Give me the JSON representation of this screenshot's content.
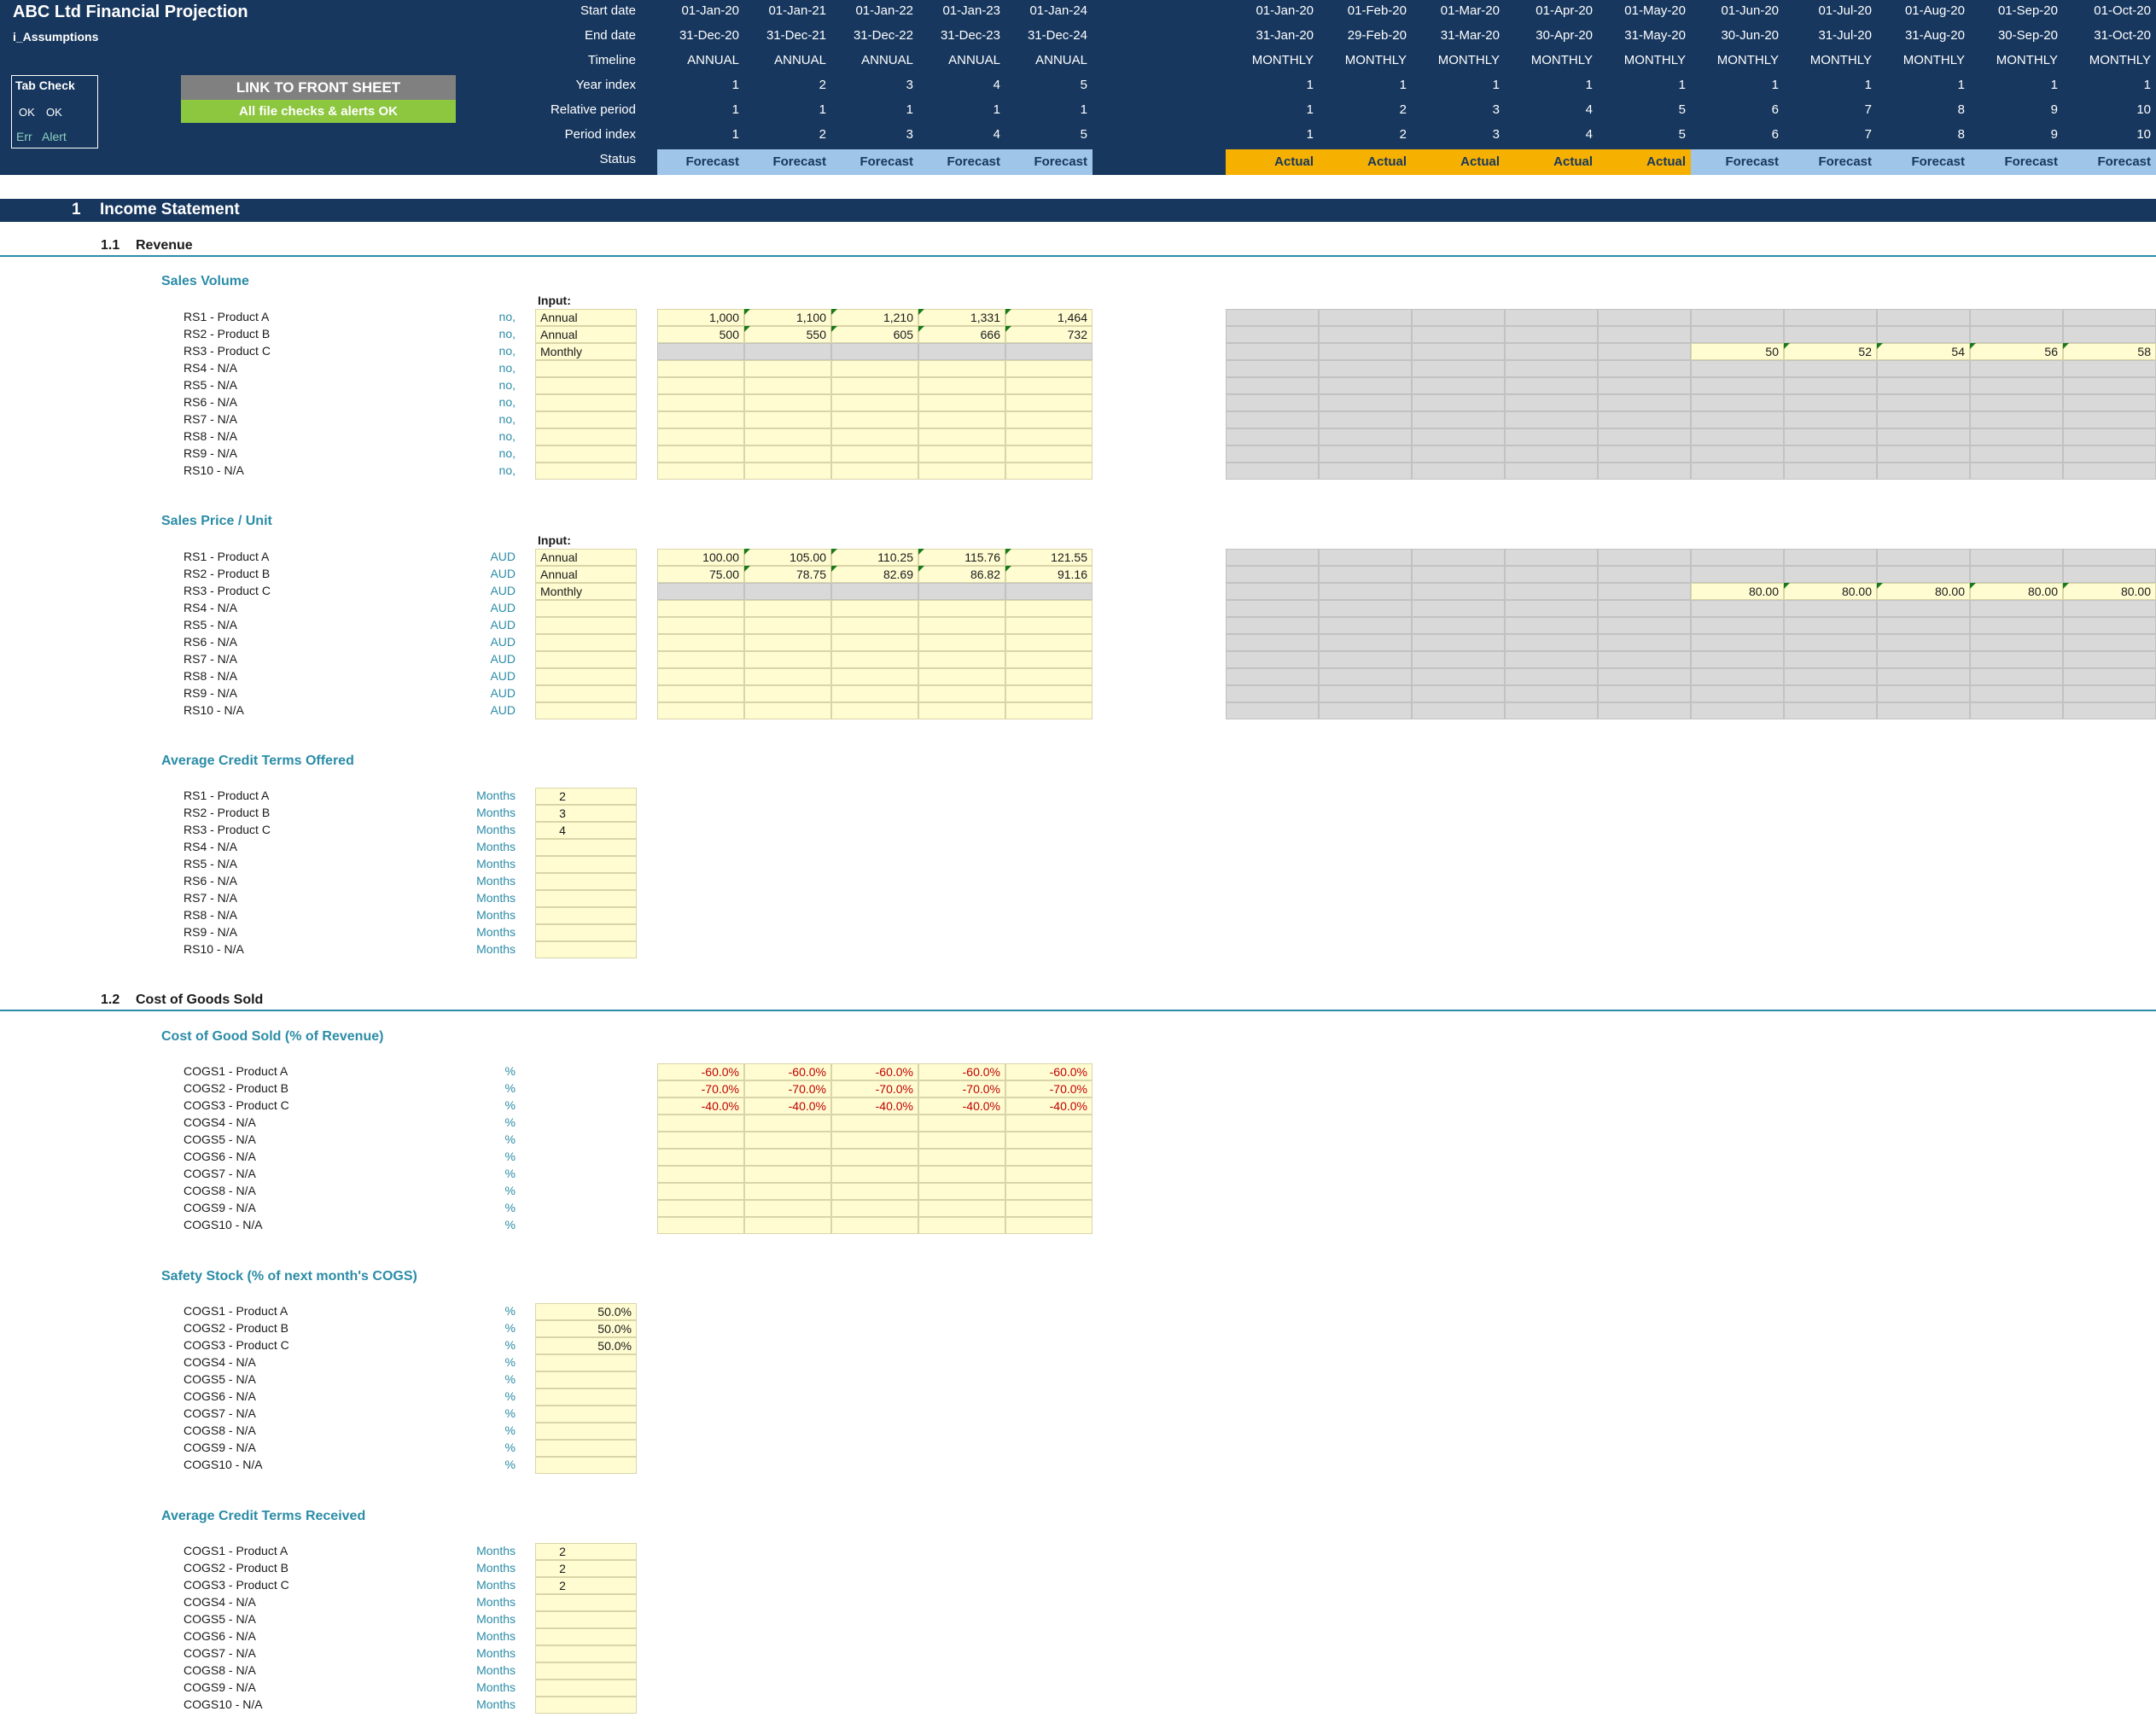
{
  "header": {
    "title": "ABC Ltd Financial Projection",
    "sheet_name": "i_Assumptions",
    "row_labels": [
      "Start date",
      "End date",
      "Timeline",
      "Year index",
      "Relative period",
      "Period index",
      "Status"
    ],
    "annual": {
      "start": [
        "01-Jan-20",
        "01-Jan-21",
        "01-Jan-22",
        "01-Jan-23",
        "01-Jan-24"
      ],
      "end": [
        "31-Dec-20",
        "31-Dec-21",
        "31-Dec-22",
        "31-Dec-23",
        "31-Dec-24"
      ],
      "timeline": [
        "ANNUAL",
        "ANNUAL",
        "ANNUAL",
        "ANNUAL",
        "ANNUAL"
      ],
      "year_index": [
        "1",
        "2",
        "3",
        "4",
        "5"
      ],
      "relative_period": [
        "1",
        "1",
        "1",
        "1",
        "1"
      ],
      "period_index": [
        "1",
        "2",
        "3",
        "4",
        "5"
      ],
      "status": [
        "Forecast",
        "Forecast",
        "Forecast",
        "Forecast",
        "Forecast"
      ]
    },
    "monthly": {
      "start": [
        "01-Jan-20",
        "01-Feb-20",
        "01-Mar-20",
        "01-Apr-20",
        "01-May-20",
        "01-Jun-20",
        "01-Jul-20",
        "01-Aug-20",
        "01-Sep-20",
        "01-Oct-20"
      ],
      "end": [
        "31-Jan-20",
        "29-Feb-20",
        "31-Mar-20",
        "30-Apr-20",
        "31-May-20",
        "30-Jun-20",
        "31-Jul-20",
        "31-Aug-20",
        "30-Sep-20",
        "31-Oct-20"
      ],
      "timeline": [
        "MONTHLY",
        "MONTHLY",
        "MONTHLY",
        "MONTHLY",
        "MONTHLY",
        "MONTHLY",
        "MONTHLY",
        "MONTHLY",
        "MONTHLY",
        "MONTHLY"
      ],
      "year_index": [
        "1",
        "1",
        "1",
        "1",
        "1",
        "1",
        "1",
        "1",
        "1",
        "1"
      ],
      "relative_period": [
        "1",
        "2",
        "3",
        "4",
        "5",
        "6",
        "7",
        "8",
        "9",
        "10"
      ],
      "period_index": [
        "1",
        "2",
        "3",
        "4",
        "5",
        "6",
        "7",
        "8",
        "9",
        "10"
      ],
      "status": [
        "Actual",
        "Actual",
        "Actual",
        "Actual",
        "Actual",
        "Forecast",
        "Forecast",
        "Forecast",
        "Forecast",
        "Forecast"
      ]
    }
  },
  "tab_check": {
    "title": "Tab Check",
    "ok1": "OK",
    "ok2": "OK",
    "err": "Err",
    "alert": "Alert"
  },
  "buttons": {
    "link_front_sheet": "LINK TO FRONT SHEET",
    "file_checks": "All file checks & alerts OK"
  },
  "colors": {
    "header_bg": "#17375e",
    "forecast": "#9fc5e8",
    "actual": "#f6b000",
    "input_cell": "#fffcd2",
    "accent": "#2b8ca7",
    "check_ok": "#8dc63f",
    "negative": "#c00000"
  },
  "section": {
    "num": "1",
    "label": "Income Statement"
  },
  "revenue": {
    "num": "1.1",
    "label": "Revenue",
    "input_label": "Input:",
    "sales_volume": {
      "title": "Sales Volume",
      "rows": [
        {
          "label": "RS1 - Product A",
          "unit": "no,",
          "input": "Annual",
          "annual": [
            "1,000",
            "1,100",
            "1,210",
            "1,331",
            "1,464"
          ],
          "monthly": []
        },
        {
          "label": "RS2 - Product B",
          "unit": "no,",
          "input": "Annual",
          "annual": [
            "500",
            "550",
            "605",
            "666",
            "732"
          ],
          "monthly": []
        },
        {
          "label": "RS3 - Product C",
          "unit": "no,",
          "input": "Monthly",
          "annual": [],
          "monthly": [
            "",
            "",
            "",
            "",
            "",
            "50",
            "52",
            "54",
            "56",
            "58"
          ]
        },
        {
          "label": "RS4 - N/A",
          "unit": "no,",
          "input": "",
          "annual": [],
          "monthly": []
        },
        {
          "label": "RS5 - N/A",
          "unit": "no,",
          "input": "",
          "annual": [],
          "monthly": []
        },
        {
          "label": "RS6 - N/A",
          "unit": "no,",
          "input": "",
          "annual": [],
          "monthly": []
        },
        {
          "label": "RS7 - N/A",
          "unit": "no,",
          "input": "",
          "annual": [],
          "monthly": []
        },
        {
          "label": "RS8 - N/A",
          "unit": "no,",
          "input": "",
          "annual": [],
          "monthly": []
        },
        {
          "label": "RS9 - N/A",
          "unit": "no,",
          "input": "",
          "annual": [],
          "monthly": []
        },
        {
          "label": "RS10 - N/A",
          "unit": "no,",
          "input": "",
          "annual": [],
          "monthly": []
        }
      ]
    },
    "sales_price": {
      "title": "Sales Price / Unit",
      "rows": [
        {
          "label": "RS1 - Product A",
          "unit": "AUD",
          "input": "Annual",
          "annual": [
            "100.00",
            "105.00",
            "110.25",
            "115.76",
            "121.55"
          ],
          "monthly": []
        },
        {
          "label": "RS2 - Product B",
          "unit": "AUD",
          "input": "Annual",
          "annual": [
            "75.00",
            "78.75",
            "82.69",
            "86.82",
            "91.16"
          ],
          "monthly": []
        },
        {
          "label": "RS3 - Product C",
          "unit": "AUD",
          "input": "Monthly",
          "annual": [],
          "monthly": [
            "",
            "",
            "",
            "",
            "",
            "80.00",
            "80.00",
            "80.00",
            "80.00",
            "80.00"
          ]
        },
        {
          "label": "RS4 - N/A",
          "unit": "AUD",
          "input": "",
          "annual": [],
          "monthly": []
        },
        {
          "label": "RS5 - N/A",
          "unit": "AUD",
          "input": "",
          "annual": [],
          "monthly": []
        },
        {
          "label": "RS6 - N/A",
          "unit": "AUD",
          "input": "",
          "annual": [],
          "monthly": []
        },
        {
          "label": "RS7 - N/A",
          "unit": "AUD",
          "input": "",
          "annual": [],
          "monthly": []
        },
        {
          "label": "RS8 - N/A",
          "unit": "AUD",
          "input": "",
          "annual": [],
          "monthly": []
        },
        {
          "label": "RS9 - N/A",
          "unit": "AUD",
          "input": "",
          "annual": [],
          "monthly": []
        },
        {
          "label": "RS10 - N/A",
          "unit": "AUD",
          "input": "",
          "annual": [],
          "monthly": []
        }
      ]
    },
    "credit_offered": {
      "title": "Average Credit Terms Offered",
      "rows": [
        {
          "label": "RS1 - Product A",
          "unit": "Months",
          "input": "2"
        },
        {
          "label": "RS2 - Product B",
          "unit": "Months",
          "input": "3"
        },
        {
          "label": "RS3 - Product C",
          "unit": "Months",
          "input": "4"
        },
        {
          "label": "RS4 - N/A",
          "unit": "Months",
          "input": ""
        },
        {
          "label": "RS5 - N/A",
          "unit": "Months",
          "input": ""
        },
        {
          "label": "RS6 - N/A",
          "unit": "Months",
          "input": ""
        },
        {
          "label": "RS7 - N/A",
          "unit": "Months",
          "input": ""
        },
        {
          "label": "RS8 - N/A",
          "unit": "Months",
          "input": ""
        },
        {
          "label": "RS9 - N/A",
          "unit": "Months",
          "input": ""
        },
        {
          "label": "RS10 - N/A",
          "unit": "Months",
          "input": ""
        }
      ]
    }
  },
  "cogs": {
    "num": "1.2",
    "label": "Cost of Goods Sold",
    "cogs_pct": {
      "title": "Cost of Good Sold (% of Revenue)",
      "rows": [
        {
          "label": "COGS1 - Product A",
          "unit": "%",
          "annual": [
            "-60.0%",
            "-60.0%",
            "-60.0%",
            "-60.0%",
            "-60.0%"
          ]
        },
        {
          "label": "COGS2 - Product B",
          "unit": "%",
          "annual": [
            "-70.0%",
            "-70.0%",
            "-70.0%",
            "-70.0%",
            "-70.0%"
          ]
        },
        {
          "label": "COGS3 - Product C",
          "unit": "%",
          "annual": [
            "-40.0%",
            "-40.0%",
            "-40.0%",
            "-40.0%",
            "-40.0%"
          ]
        },
        {
          "label": "COGS4 - N/A",
          "unit": "%",
          "annual": []
        },
        {
          "label": "COGS5 - N/A",
          "unit": "%",
          "annual": []
        },
        {
          "label": "COGS6 - N/A",
          "unit": "%",
          "annual": []
        },
        {
          "label": "COGS7 - N/A",
          "unit": "%",
          "annual": []
        },
        {
          "label": "COGS8 - N/A",
          "unit": "%",
          "annual": []
        },
        {
          "label": "COGS9 - N/A",
          "unit": "%",
          "annual": []
        },
        {
          "label": "COGS10 - N/A",
          "unit": "%",
          "annual": []
        }
      ]
    },
    "safety_stock": {
      "title": "Safety Stock (% of next month's COGS)",
      "rows": [
        {
          "label": "COGS1 - Product A",
          "unit": "%",
          "input": "50.0%"
        },
        {
          "label": "COGS2 - Product B",
          "unit": "%",
          "input": "50.0%"
        },
        {
          "label": "COGS3 - Product C",
          "unit": "%",
          "input": "50.0%"
        },
        {
          "label": "COGS4 - N/A",
          "unit": "%",
          "input": ""
        },
        {
          "label": "COGS5 - N/A",
          "unit": "%",
          "input": ""
        },
        {
          "label": "COGS6 - N/A",
          "unit": "%",
          "input": ""
        },
        {
          "label": "COGS7 - N/A",
          "unit": "%",
          "input": ""
        },
        {
          "label": "COGS8 - N/A",
          "unit": "%",
          "input": ""
        },
        {
          "label": "COGS9 - N/A",
          "unit": "%",
          "input": ""
        },
        {
          "label": "COGS10 - N/A",
          "unit": "%",
          "input": ""
        }
      ]
    },
    "credit_received": {
      "title": "Average Credit Terms Received",
      "rows": [
        {
          "label": "COGS1 - Product A",
          "unit": "Months",
          "input": "2"
        },
        {
          "label": "COGS2 - Product B",
          "unit": "Months",
          "input": "2"
        },
        {
          "label": "COGS3 - Product C",
          "unit": "Months",
          "input": "2"
        },
        {
          "label": "COGS4 - N/A",
          "unit": "Months",
          "input": ""
        },
        {
          "label": "COGS5 - N/A",
          "unit": "Months",
          "input": ""
        },
        {
          "label": "COGS6 - N/A",
          "unit": "Months",
          "input": ""
        },
        {
          "label": "COGS7 - N/A",
          "unit": "Months",
          "input": ""
        },
        {
          "label": "COGS8 - N/A",
          "unit": "Months",
          "input": ""
        },
        {
          "label": "COGS9 - N/A",
          "unit": "Months",
          "input": ""
        },
        {
          "label": "COGS10 - N/A",
          "unit": "Months",
          "input": ""
        }
      ]
    }
  }
}
